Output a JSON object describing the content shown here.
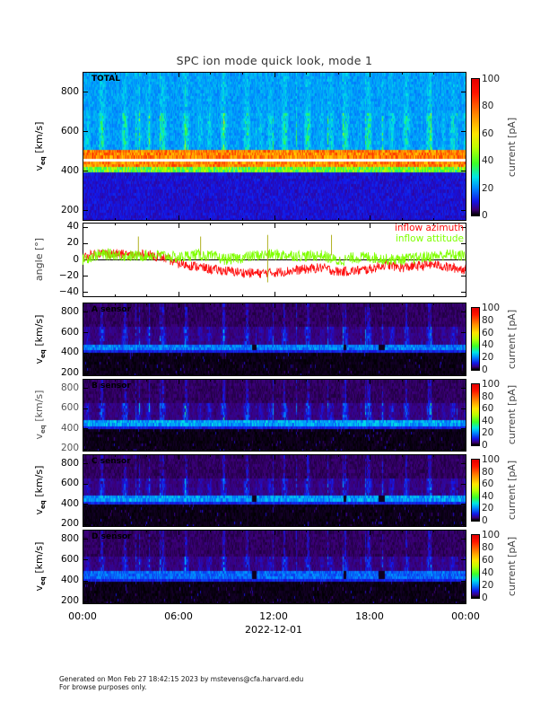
{
  "title": "SPC ion mode quick look, mode 1",
  "colors": {
    "azimuth": "#ff1010",
    "attitude": "#80ff00",
    "frame": "#000000"
  },
  "chart_data": [
    {
      "type": "heatmap",
      "panel": "total",
      "label": "TOTAL",
      "ylabel_main": "v",
      "ylabel_sub": "eq",
      "ylabel_units": "[km/s]",
      "ylim": [
        150,
        900
      ],
      "yticks": [
        "800",
        "600",
        "400",
        "200"
      ],
      "ytick_values": [
        800,
        600,
        400,
        200
      ],
      "colorbar": {
        "label": "current [pA]",
        "range": [
          0,
          100
        ],
        "ticks": [
          "100",
          "80",
          "60",
          "40",
          "20",
          "0"
        ],
        "tick_values": [
          100,
          80,
          60,
          40,
          20,
          0
        ]
      },
      "core_velocity_kms": 460,
      "core_current_pA": 80,
      "background_current_pA": [
        8,
        22
      ]
    },
    {
      "type": "line",
      "panel": "angle",
      "ylabel": "angle [°]",
      "ylim": [
        -45,
        45
      ],
      "yticks": [
        "40",
        "20",
        "0",
        "−20",
        "−40"
      ],
      "ytick_values": [
        40,
        20,
        0,
        -20,
        -40
      ],
      "x_hours": [
        0,
        1,
        2,
        3,
        4,
        5,
        6,
        7,
        8,
        9,
        10,
        11,
        12,
        13,
        14,
        15,
        16,
        17,
        18,
        19,
        20,
        21,
        22,
        23,
        24
      ],
      "series": [
        {
          "name": "inflow azimuth",
          "values": [
            2,
            8,
            7,
            5,
            6,
            3,
            -5,
            -8,
            -12,
            -14,
            -16,
            -17,
            -16,
            -14,
            -12,
            -10,
            -15,
            -14,
            -12,
            -6,
            -10,
            -8,
            -6,
            -10,
            -12
          ]
        },
        {
          "name": "inflow attitude",
          "values": [
            0,
            6,
            6,
            4,
            5,
            5,
            2,
            6,
            4,
            0,
            2,
            5,
            6,
            5,
            4,
            5,
            -2,
            2,
            3,
            0,
            0,
            2,
            4,
            6,
            4
          ]
        }
      ],
      "zero_line": 0
    },
    {
      "type": "heatmap",
      "panel": "a",
      "label": "A sensor",
      "ylabel_main": "v",
      "ylabel_sub": "eq",
      "ylabel_units": "[km/s]",
      "ylim": [
        180,
        890
      ],
      "yticks": [
        "800",
        "600",
        "400",
        "200"
      ],
      "ytick_values": [
        800,
        600,
        400,
        200
      ],
      "colorbar": {
        "label": "current [pA]",
        "ticks": [
          "100",
          "80",
          "60",
          "40",
          "20",
          "0"
        ],
        "tick_values": [
          100,
          80,
          60,
          40,
          20,
          0
        ]
      },
      "core_current_pA": 22
    },
    {
      "type": "heatmap",
      "panel": "b",
      "label": "B sensor",
      "ylabel_main": "v",
      "ylabel_sub": "eq",
      "ylabel_units": "[km/s]",
      "ylim": [
        180,
        890
      ],
      "yticks": [
        "800",
        "600",
        "400",
        "200"
      ],
      "ytick_values": [
        800,
        600,
        400,
        200
      ],
      "colorbar": {
        "label": "current [pA]",
        "ticks": [
          "100",
          "80",
          "60",
          "40",
          "20",
          "0"
        ],
        "tick_values": [
          100,
          80,
          60,
          40,
          20,
          0
        ]
      },
      "core_current_pA": 26
    },
    {
      "type": "heatmap",
      "panel": "c",
      "label": "C sensor",
      "ylabel_main": "v",
      "ylabel_sub": "eq",
      "ylabel_units": "[km/s]",
      "ylim": [
        180,
        890
      ],
      "yticks": [
        "800",
        "600",
        "400",
        "200"
      ],
      "ytick_values": [
        800,
        600,
        400,
        200
      ],
      "colorbar": {
        "label": "current [pA]",
        "ticks": [
          "100",
          "80",
          "60",
          "40",
          "20",
          "0"
        ],
        "tick_values": [
          100,
          80,
          60,
          40,
          20,
          0
        ]
      },
      "core_current_pA": 25
    },
    {
      "type": "heatmap",
      "panel": "d",
      "label": "D sensor",
      "ylabel_main": "v",
      "ylabel_sub": "eq",
      "ylabel_units": "[km/s]",
      "ylim": [
        180,
        890
      ],
      "yticks": [
        "800",
        "600",
        "400",
        "200"
      ],
      "ytick_values": [
        800,
        600,
        400,
        200
      ],
      "colorbar": {
        "label": "current [pA]",
        "ticks": [
          "100",
          "80",
          "60",
          "40",
          "20",
          "0"
        ],
        "tick_values": [
          100,
          80,
          60,
          40,
          20,
          0
        ]
      },
      "core_current_pA": 20
    }
  ],
  "xaxis": {
    "ticks": [
      "00:00",
      "06:00",
      "12:00",
      "18:00",
      "00:00"
    ],
    "tick_hours": [
      0,
      6,
      12,
      18,
      24
    ],
    "date": "2022-12-01"
  },
  "footer": {
    "line1": "Generated on Mon Feb 27 18:42:15 2023 by mstevens@cfa.harvard.edu",
    "line2": "For browse purposes only."
  }
}
